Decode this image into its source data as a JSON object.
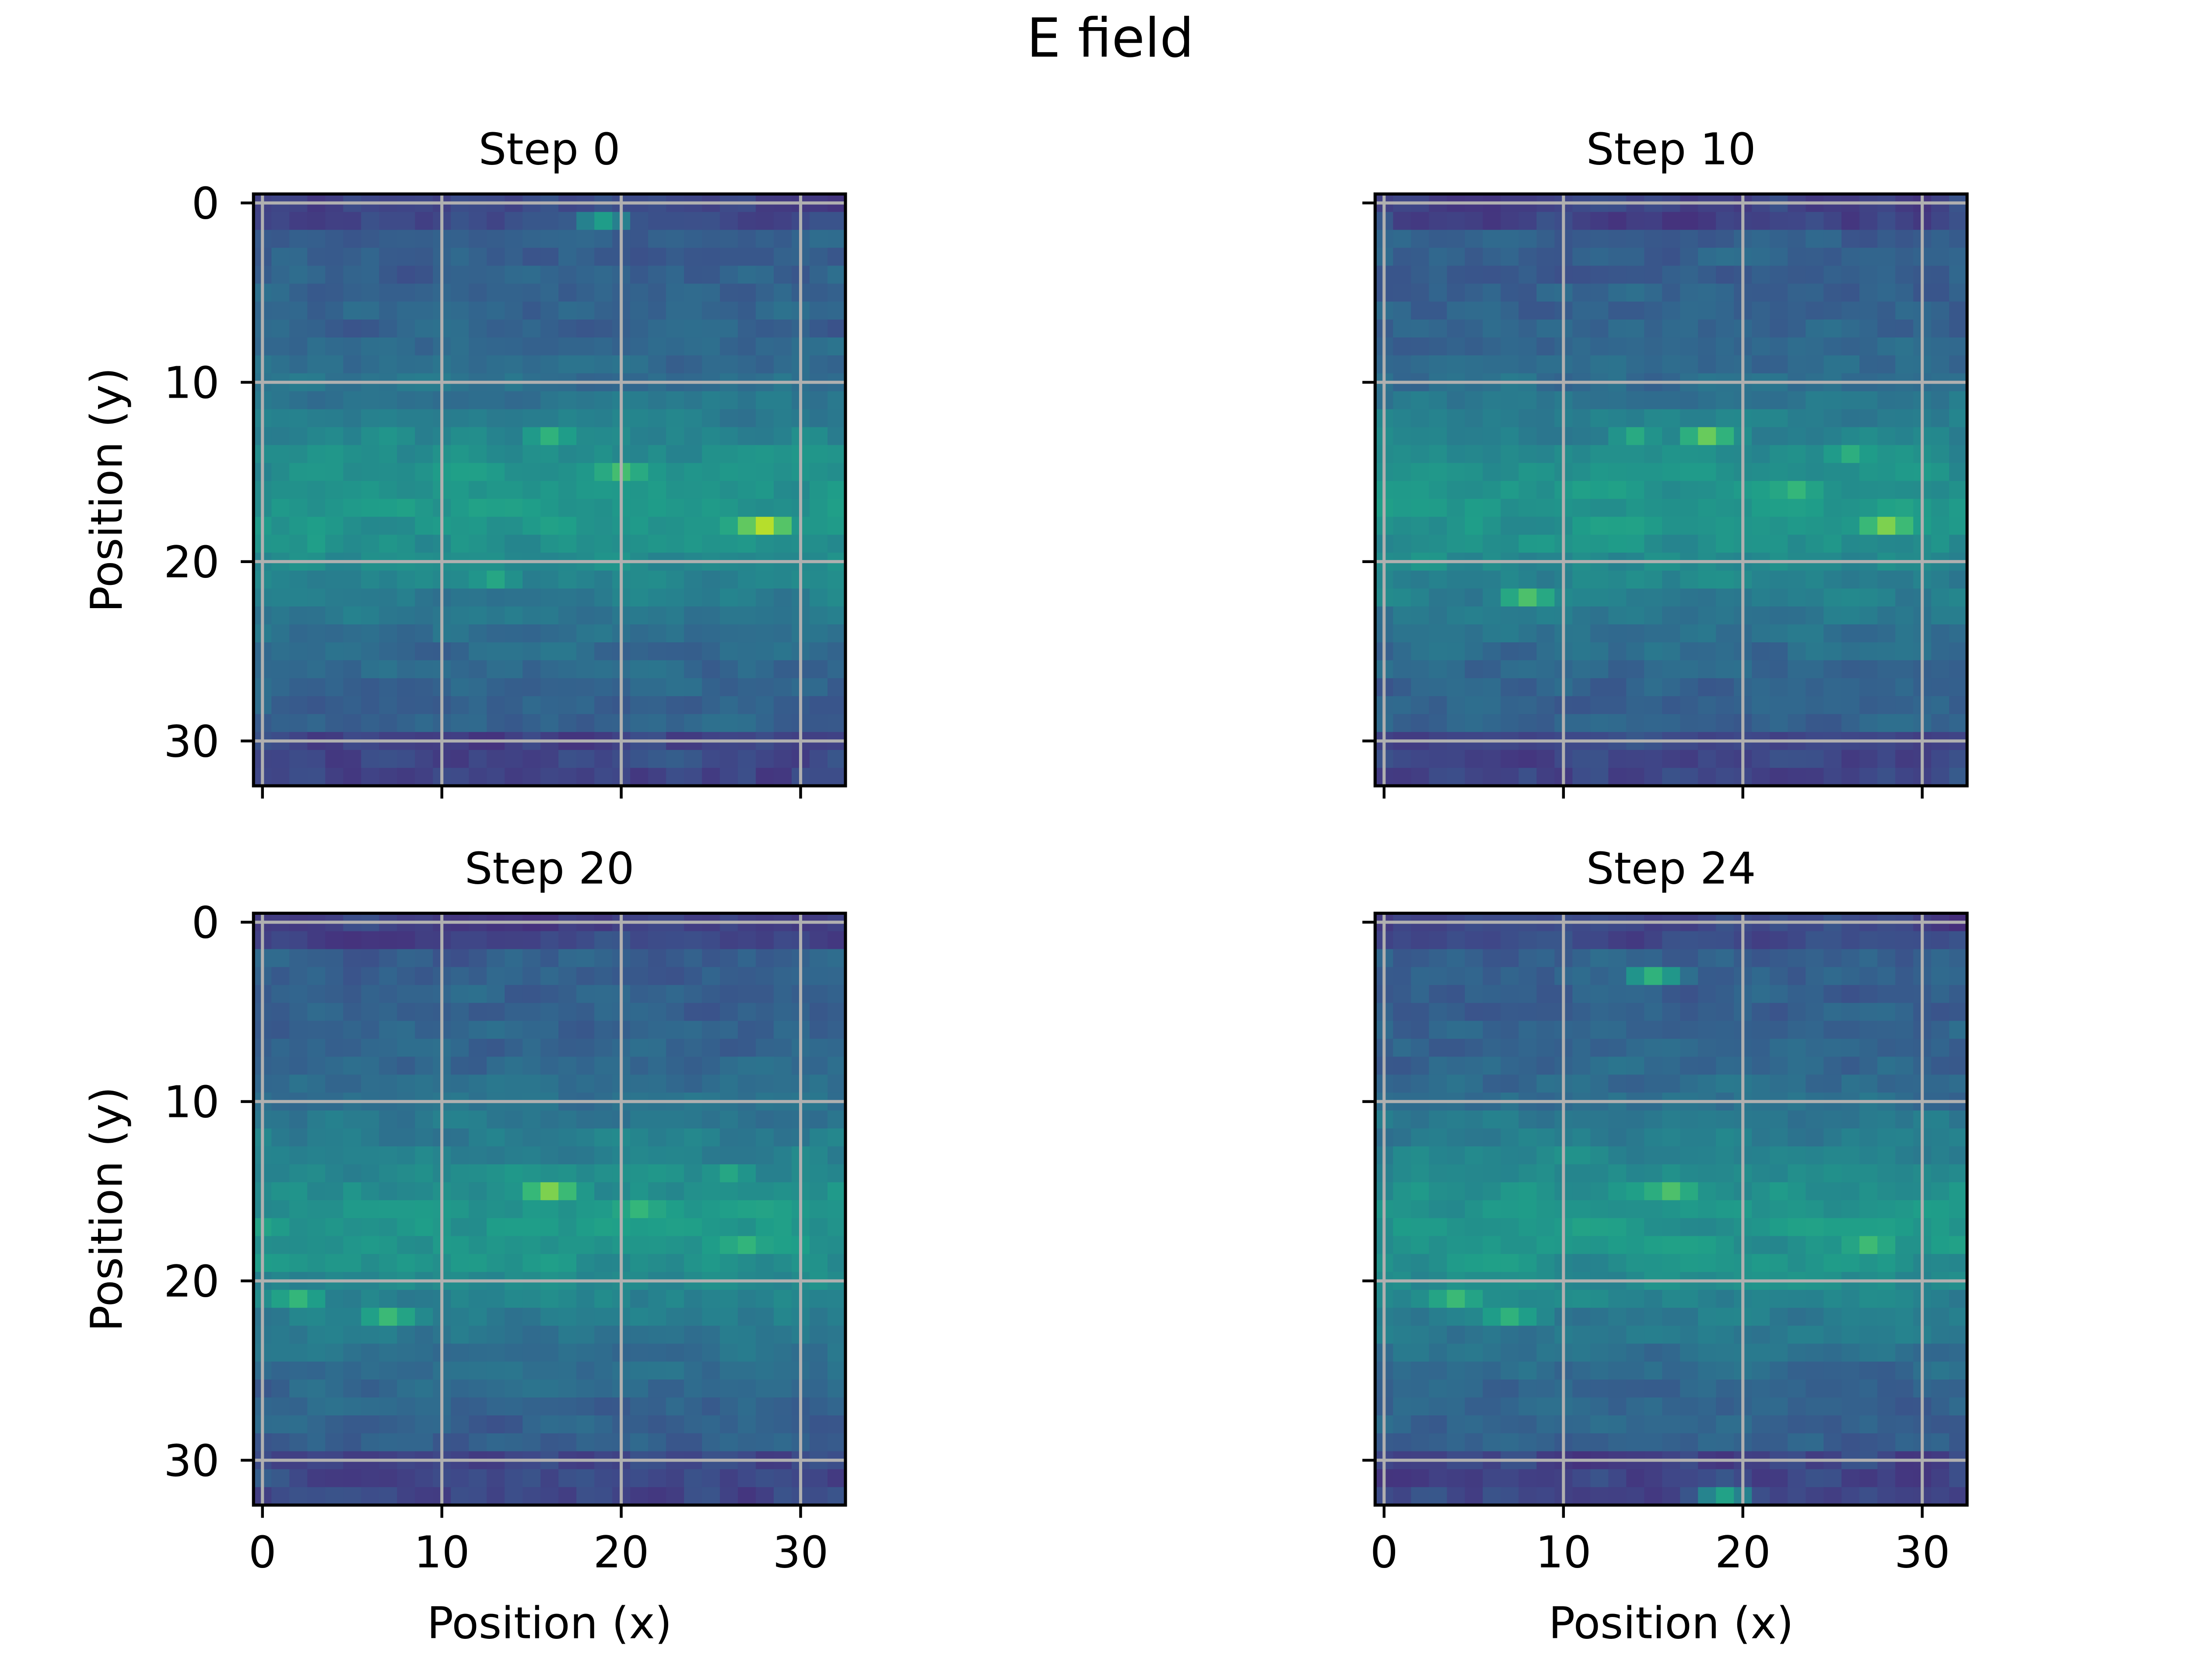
{
  "figure": {
    "suptitle": "E field"
  },
  "chart_data": [
    {
      "type": "heatmap",
      "title": "Step 0",
      "xlabel": "",
      "ylabel": "Position (y)",
      "grid_size": [
        33,
        33
      ],
      "xlim": [
        -0.5,
        32.5
      ],
      "ylim": [
        32.5,
        -0.5
      ],
      "xticks": [
        0,
        10,
        20,
        30
      ],
      "yticks": [
        0,
        10,
        20,
        30
      ],
      "show_xtick_labels": false,
      "show_ytick_labels": true,
      "grid": true,
      "colormap": "viridis",
      "seed": 11,
      "hotspots": [
        {
          "x": 28,
          "y": 18,
          "value": 1.0
        },
        {
          "x": 20,
          "y": 15,
          "value": 0.78
        },
        {
          "x": 16,
          "y": 13,
          "value": 0.72
        },
        {
          "x": 13,
          "y": 21,
          "value": 0.66
        },
        {
          "x": 19,
          "y": 1,
          "value": 0.62
        },
        {
          "x": 3,
          "y": 19,
          "value": 0.62
        }
      ]
    },
    {
      "type": "heatmap",
      "title": "Step 10",
      "xlabel": "",
      "ylabel": "",
      "grid_size": [
        33,
        33
      ],
      "xlim": [
        -0.5,
        32.5
      ],
      "ylim": [
        32.5,
        -0.5
      ],
      "xticks": [
        0,
        10,
        20,
        30
      ],
      "yticks": [
        0,
        10,
        20,
        30
      ],
      "show_xtick_labels": false,
      "show_ytick_labels": false,
      "grid": true,
      "colormap": "viridis",
      "seed": 23,
      "hotspots": [
        {
          "x": 28,
          "y": 18,
          "value": 0.9
        },
        {
          "x": 18,
          "y": 13,
          "value": 0.86
        },
        {
          "x": 8,
          "y": 22,
          "value": 0.8
        },
        {
          "x": 23,
          "y": 16,
          "value": 0.74
        },
        {
          "x": 26,
          "y": 14,
          "value": 0.7
        },
        {
          "x": 14,
          "y": 13,
          "value": 0.68
        }
      ]
    },
    {
      "type": "heatmap",
      "title": "Step 20",
      "xlabel": "Position (x)",
      "ylabel": "Position (y)",
      "grid_size": [
        33,
        33
      ],
      "xlim": [
        -0.5,
        32.5
      ],
      "ylim": [
        32.5,
        -0.5
      ],
      "xticks": [
        0,
        10,
        20,
        30
      ],
      "yticks": [
        0,
        10,
        20,
        30
      ],
      "show_xtick_labels": true,
      "show_ytick_labels": true,
      "grid": true,
      "colormap": "viridis",
      "seed": 37,
      "hotspots": [
        {
          "x": 16,
          "y": 15,
          "value": 0.9
        },
        {
          "x": 21,
          "y": 16,
          "value": 0.74
        },
        {
          "x": 7,
          "y": 22,
          "value": 0.76
        },
        {
          "x": 2,
          "y": 21,
          "value": 0.74
        },
        {
          "x": 27,
          "y": 18,
          "value": 0.72
        },
        {
          "x": 26,
          "y": 14,
          "value": 0.66
        }
      ]
    },
    {
      "type": "heatmap",
      "title": "Step 24",
      "xlabel": "Position (x)",
      "ylabel": "",
      "grid_size": [
        33,
        33
      ],
      "xlim": [
        -0.5,
        32.5
      ],
      "ylim": [
        32.5,
        -0.5
      ],
      "xticks": [
        0,
        10,
        20,
        30
      ],
      "yticks": [
        0,
        10,
        20,
        30
      ],
      "show_xtick_labels": true,
      "show_ytick_labels": false,
      "grid": true,
      "colormap": "viridis",
      "seed": 51,
      "hotspots": [
        {
          "x": 16,
          "y": 15,
          "value": 0.8
        },
        {
          "x": 27,
          "y": 18,
          "value": 0.76
        },
        {
          "x": 4,
          "y": 21,
          "value": 0.76
        },
        {
          "x": 7,
          "y": 22,
          "value": 0.72
        },
        {
          "x": 15,
          "y": 3,
          "value": 0.72
        },
        {
          "x": 19,
          "y": 32,
          "value": 0.64
        }
      ]
    }
  ]
}
